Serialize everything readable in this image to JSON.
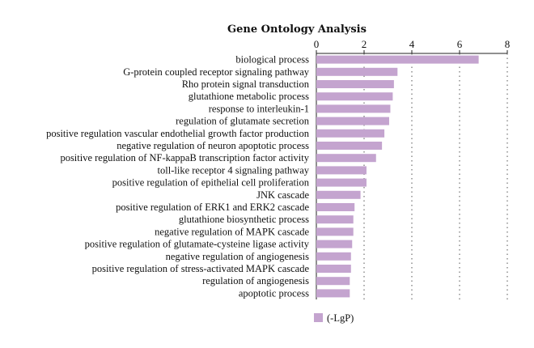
{
  "chart_data": {
    "type": "bar",
    "orientation": "horizontal",
    "title": "Gene Ontology Analysis",
    "xlim": [
      0,
      8
    ],
    "x_ticks": [
      0,
      2,
      4,
      6,
      8
    ],
    "x_axis_position": "top",
    "grid": "vertical dotted",
    "bar_color": "#c4a4cf",
    "legend_position": "bottom",
    "categories": [
      "biological process",
      "G-protein coupled receptor signaling pathway",
      "Rho protein signal transduction",
      "glutathione metabolic process",
      "response to interleukin-1",
      "regulation of glutamate secretion",
      "positive regulation vascular endothelial growth factor production",
      "negative regulation of neuron apoptotic process",
      "positive regulation of NF-kappaB transcription factor activity",
      "toll-like receptor 4 signaling pathway",
      "positive regulation of epithelial cell proliferation",
      "JNK cascade",
      "positive regulation of ERK1 and ERK2 cascade",
      "glutathione biosynthetic process",
      "negative regulation of MAPK cascade",
      "positive regulation of glutamate-cysteine ligase activity",
      "negative regulation of angiogenesis",
      "positive regulation of stress-activated MAPK cascade",
      "regulation of angiogenesis",
      "apoptotic process"
    ],
    "series": [
      {
        "name": "(-LgP)",
        "values": [
          6.8,
          3.4,
          3.25,
          3.2,
          3.1,
          3.05,
          2.85,
          2.75,
          2.5,
          2.1,
          2.1,
          1.85,
          1.6,
          1.55,
          1.55,
          1.5,
          1.45,
          1.45,
          1.4,
          1.4
        ]
      }
    ]
  }
}
